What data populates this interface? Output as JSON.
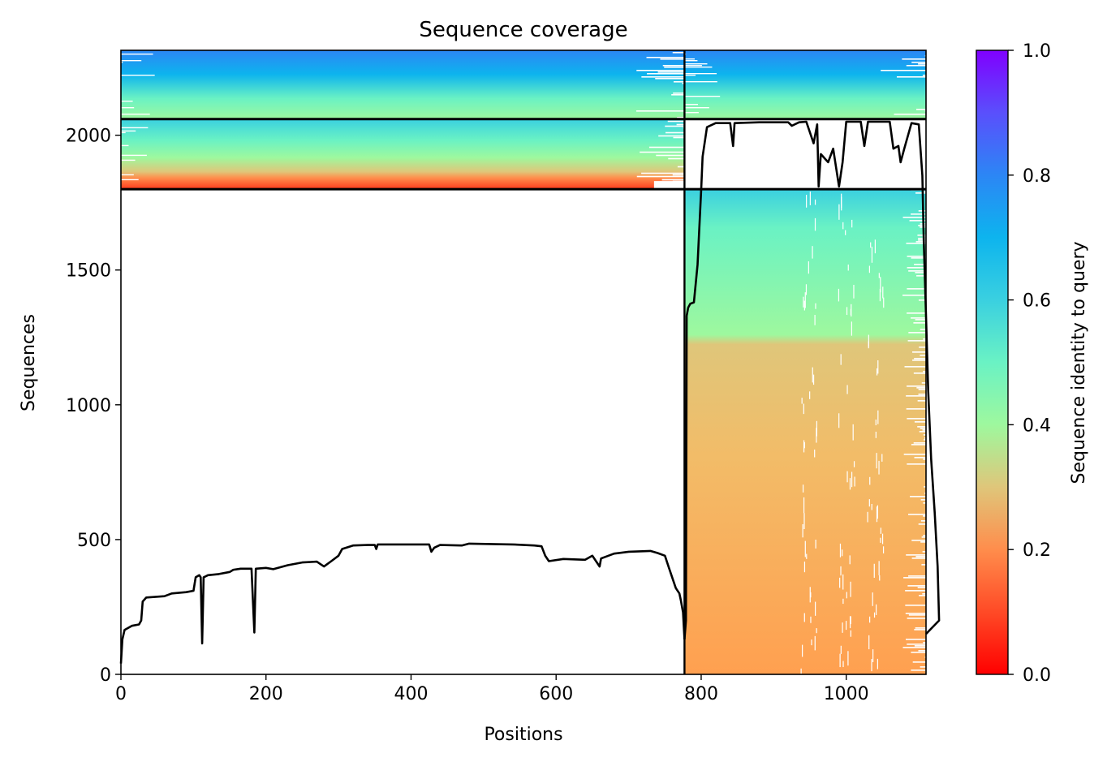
{
  "chart_data": {
    "type": "heatmap",
    "title": "Sequence coverage",
    "xlabel": "Positions",
    "ylabel": "Sequences",
    "xlim": [
      0,
      1110
    ],
    "ylim": [
      0,
      2315
    ],
    "x_ticks": [
      "0",
      "200",
      "400",
      "600",
      "800",
      "1000"
    ],
    "x_tick_values": [
      0,
      200,
      400,
      600,
      800,
      1000
    ],
    "y_ticks": [
      "0",
      "500",
      "1000",
      "1500",
      "2000"
    ],
    "y_tick_values": [
      0,
      500,
      1000,
      1500,
      2000
    ],
    "colorbar": {
      "label": "Sequence identity to query",
      "range": [
        0,
        1
      ],
      "ticks": [
        "0.0",
        "0.2",
        "0.4",
        "0.6",
        "0.8",
        "1.0"
      ],
      "tick_values": [
        0,
        0.2,
        0.4,
        0.6,
        0.8,
        1.0
      ],
      "colormap": "rainbow"
    },
    "chain_boundary_x": 777,
    "block_boundaries_y": [
      1800,
      2060
    ],
    "blocks": [
      {
        "x_range": [
          0,
          777
        ],
        "y_range": [
          2060,
          2315
        ],
        "identity_top": 0.82,
        "identity_bottom": 0.42
      },
      {
        "x_range": [
          777,
          1110
        ],
        "y_range": [
          2060,
          2315
        ],
        "identity_top": 0.82,
        "identity_bottom": 0.45
      },
      {
        "x_range": [
          0,
          777
        ],
        "y_range": [
          1800,
          2060
        ],
        "identity_top": 0.65,
        "identity_bottom": 0.1
      },
      {
        "x_range": [
          777,
          1110
        ],
        "y_range": [
          0,
          1800
        ],
        "identity_top": 0.68,
        "identity_bottom": 0.23
      }
    ],
    "series": [
      {
        "points": [
          [
            0,
            40
          ],
          [
            2,
            130
          ],
          [
            5,
            165
          ],
          [
            15,
            180
          ],
          [
            25,
            185
          ],
          [
            28,
            200
          ],
          [
            30,
            270
          ],
          [
            35,
            285
          ],
          [
            60,
            290
          ],
          [
            70,
            300
          ],
          [
            90,
            305
          ],
          [
            100,
            310
          ],
          [
            103,
            360
          ],
          [
            108,
            368
          ],
          [
            110,
            360
          ],
          [
            112,
            115
          ],
          [
            114,
            360
          ],
          [
            120,
            368
          ],
          [
            135,
            372
          ],
          [
            150,
            380
          ],
          [
            155,
            388
          ],
          [
            165,
            392
          ],
          [
            180,
            392
          ],
          [
            184,
            155
          ],
          [
            186,
            392
          ],
          [
            200,
            395
          ],
          [
            210,
            390
          ],
          [
            230,
            405
          ],
          [
            250,
            415
          ],
          [
            270,
            418
          ],
          [
            280,
            400
          ],
          [
            290,
            420
          ],
          [
            300,
            440
          ],
          [
            305,
            465
          ],
          [
            320,
            478
          ],
          [
            340,
            480
          ],
          [
            350,
            480
          ],
          [
            352,
            465
          ],
          [
            354,
            482
          ],
          [
            400,
            482
          ],
          [
            425,
            482
          ],
          [
            428,
            455
          ],
          [
            432,
            470
          ],
          [
            440,
            480
          ],
          [
            470,
            478
          ],
          [
            480,
            485
          ],
          [
            540,
            482
          ],
          [
            570,
            478
          ],
          [
            580,
            475
          ],
          [
            585,
            440
          ],
          [
            590,
            420
          ],
          [
            610,
            428
          ],
          [
            640,
            425
          ],
          [
            650,
            440
          ],
          [
            660,
            400
          ],
          [
            662,
            430
          ],
          [
            680,
            448
          ],
          [
            700,
            455
          ],
          [
            730,
            458
          ],
          [
            740,
            450
          ],
          [
            750,
            440
          ],
          [
            755,
            400
          ],
          [
            760,
            360
          ],
          [
            765,
            320
          ],
          [
            770,
            300
          ],
          [
            772,
            275
          ],
          [
            775,
            230
          ],
          [
            777,
            130
          ]
        ]
      },
      {
        "points": [
          [
            777,
            130
          ],
          [
            779,
            200
          ],
          [
            780,
            1330
          ],
          [
            782,
            1360
          ],
          [
            785,
            1375
          ],
          [
            790,
            1380
          ],
          [
            795,
            1520
          ],
          [
            800,
            1800
          ],
          [
            802,
            1920
          ],
          [
            808,
            2030
          ],
          [
            820,
            2045
          ],
          [
            840,
            2045
          ],
          [
            844,
            1960
          ],
          [
            846,
            2045
          ],
          [
            880,
            2048
          ],
          [
            920,
            2048
          ],
          [
            925,
            2035
          ],
          [
            935,
            2048
          ],
          [
            945,
            2050
          ],
          [
            955,
            1970
          ],
          [
            960,
            2040
          ],
          [
            962,
            1810
          ],
          [
            965,
            1930
          ],
          [
            975,
            1900
          ],
          [
            982,
            1950
          ],
          [
            990,
            1810
          ],
          [
            995,
            1900
          ],
          [
            1000,
            2050
          ],
          [
            1020,
            2050
          ],
          [
            1025,
            1960
          ],
          [
            1030,
            2050
          ],
          [
            1060,
            2050
          ],
          [
            1065,
            1950
          ],
          [
            1072,
            1960
          ],
          [
            1075,
            1900
          ],
          [
            1080,
            1950
          ],
          [
            1090,
            2045
          ],
          [
            1100,
            2040
          ],
          [
            1105,
            1850
          ],
          [
            1107,
            1600
          ],
          [
            1110,
            1330
          ],
          [
            1113,
            1050
          ],
          [
            1117,
            800
          ],
          [
            1122,
            600
          ],
          [
            1126,
            400
          ],
          [
            1128,
            200
          ],
          [
            1110,
            150
          ]
        ]
      }
    ]
  }
}
